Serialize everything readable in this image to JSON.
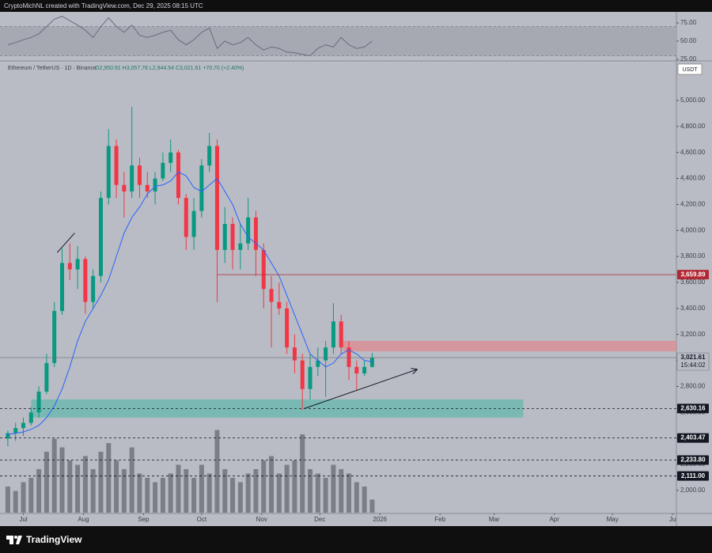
{
  "chart_data": {
    "type": "candlestick",
    "attribution": "CryptoMichNL created with TradingView.com, Dec 29, 2025 08:15 UTC",
    "symbol": "Ethereum / TetherUS · 1D · Binance",
    "ohlc_label": "O2,950.91 H3,057.78 L2,944.54 C3,021.61 +70.70 (+2.40%)",
    "currency": "USDT",
    "brand": "TradingView",
    "up_color": "#089981",
    "down_color": "#f23645",
    "x": [
      -8,
      -4,
      0,
      4,
      8,
      12,
      16,
      20,
      24,
      28,
      32,
      36,
      40,
      44,
      48,
      52,
      56,
      60,
      64,
      68,
      72,
      76,
      80,
      84,
      88,
      92,
      96,
      100,
      104,
      108,
      112,
      116,
      120,
      124,
      128,
      132,
      136,
      140,
      144,
      148,
      152,
      156,
      160,
      164,
      168,
      172,
      176,
      180
    ],
    "open": [
      2400,
      2440,
      2480,
      2520,
      2600,
      2760,
      2980,
      3380,
      3750,
      3700,
      3780,
      3450,
      3650,
      4250,
      4650,
      4350,
      4300,
      4500,
      4350,
      4300,
      4400,
      4520,
      4600,
      4250,
      3950,
      4150,
      4500,
      4650,
      3850,
      4050,
      3850,
      3900,
      4100,
      3850,
      3550,
      3450,
      3400,
      3100,
      3000,
      2780,
      2950,
      3000,
      3100,
      3300,
      3100,
      2950,
      2900,
      2950.91
    ],
    "high": [
      2460,
      2520,
      2560,
      2640,
      2800,
      3050,
      3450,
      3860,
      3900,
      3880,
      3800,
      3700,
      4300,
      4780,
      4700,
      4450,
      4950,
      4560,
      4450,
      4450,
      4600,
      4700,
      4620,
      4280,
      4250,
      4550,
      4750,
      4700,
      4180,
      4100,
      4050,
      4250,
      4150,
      3900,
      3650,
      3600,
      3450,
      3200,
      3050,
      3050,
      3100,
      3150,
      3440,
      3350,
      3150,
      3000,
      3000,
      3057.78
    ],
    "low": [
      2340,
      2380,
      2420,
      2500,
      2560,
      2740,
      2950,
      3350,
      3620,
      3550,
      3360,
      3400,
      3600,
      4200,
      4250,
      4100,
      4250,
      4250,
      4250,
      4200,
      4380,
      4450,
      4200,
      3850,
      3850,
      4100,
      4450,
      3450,
      3750,
      3700,
      3700,
      3850,
      3650,
      3400,
      3100,
      3350,
      3050,
      2900,
      2620,
      2700,
      2880,
      2720,
      3050,
      3050,
      2850,
      2770,
      2880,
      2944.54
    ],
    "close": [
      2440,
      2480,
      2520,
      2600,
      2760,
      2980,
      3380,
      3750,
      3700,
      3780,
      3450,
      3650,
      4250,
      4650,
      4350,
      4300,
      4500,
      4350,
      4300,
      4400,
      4520,
      4600,
      4250,
      3950,
      4150,
      4500,
      4650,
      3850,
      4050,
      3850,
      3900,
      4100,
      3850,
      3550,
      3450,
      3400,
      3100,
      3000,
      2780,
      2950,
      3000,
      3100,
      3300,
      3100,
      2950,
      2900,
      2950,
      3021.61
    ],
    "ma": {
      "color": "#2962ff",
      "values": [
        2430,
        2440,
        2450,
        2470,
        2500,
        2560,
        2650,
        2780,
        2950,
        3150,
        3300,
        3400,
        3500,
        3620,
        3800,
        3980,
        4100,
        4180,
        4280,
        4340,
        4350,
        4380,
        4450,
        4420,
        4330,
        4300,
        4350,
        4400,
        4300,
        4200,
        4050,
        3950,
        3900,
        3850,
        3750,
        3650,
        3500,
        3350,
        3200,
        3050,
        3000,
        2950,
        2980,
        3050,
        3080,
        3050,
        3000,
        2990
      ]
    },
    "volume": {
      "color": "#6b6e76",
      "max": 100,
      "values": [
        30,
        25,
        35,
        40,
        50,
        70,
        85,
        75,
        60,
        55,
        65,
        50,
        70,
        80,
        60,
        50,
        75,
        45,
        40,
        35,
        40,
        45,
        55,
        50,
        40,
        55,
        45,
        95,
        50,
        40,
        35,
        45,
        50,
        60,
        65,
        45,
        55,
        60,
        90,
        50,
        45,
        40,
        55,
        50,
        45,
        35,
        30,
        15
      ]
    },
    "rsi": {
      "color": "#6a6d78",
      "ylim": [
        24,
        89
      ],
      "yticks": [
        {
          "value": 75,
          "label": "75.00"
        },
        {
          "value": 50,
          "label": "50.00"
        },
        {
          "value": 25,
          "label": "25.00"
        }
      ],
      "band": [
        30,
        70
      ],
      "values": [
        45,
        48,
        52,
        55,
        60,
        70,
        80,
        84,
        78,
        72,
        65,
        55,
        70,
        82,
        70,
        62,
        72,
        58,
        55,
        58,
        62,
        65,
        52,
        45,
        52,
        62,
        68,
        40,
        50,
        45,
        48,
        55,
        45,
        38,
        42,
        40,
        35,
        34,
        32,
        30,
        40,
        45,
        42,
        55,
        45,
        40,
        42,
        50
      ]
    },
    "xlim": [
      -10,
      337
    ],
    "xticks": [
      {
        "value": 0,
        "label": "Jul"
      },
      {
        "value": 31,
        "label": "Aug"
      },
      {
        "value": 62,
        "label": "Sep"
      },
      {
        "value": 92,
        "label": "Oct"
      },
      {
        "value": 123,
        "label": "Nov"
      },
      {
        "value": 153,
        "label": "Dec"
      },
      {
        "value": 184,
        "label": "2026"
      },
      {
        "value": 215,
        "label": "Feb"
      },
      {
        "value": 243,
        "label": "Mar"
      },
      {
        "value": 274,
        "label": "Apr"
      },
      {
        "value": 304,
        "label": "May"
      },
      {
        "value": 335,
        "label": "Ju"
      }
    ],
    "ylim": [
      1829,
      5298
    ],
    "yticks": [
      {
        "value": 2000,
        "label": "2,000.00"
      },
      {
        "value": 2200,
        "label": "2,200.00"
      },
      {
        "value": 2400,
        "label": "2,400.00"
      },
      {
        "value": 2600,
        "label": "2,600.00"
      },
      {
        "value": 2800,
        "label": "2,800.00"
      },
      {
        "value": 3000,
        "label": "3,000.00"
      },
      {
        "value": 3200,
        "label": "3,200.00"
      },
      {
        "value": 3400,
        "label": "3,400.00"
      },
      {
        "value": 3600,
        "label": "3,600.00"
      },
      {
        "value": 3800,
        "label": "3,800.00"
      },
      {
        "value": 4000,
        "label": "4,000.00"
      },
      {
        "value": 4200,
        "label": "4,200.00"
      },
      {
        "value": 4400,
        "label": "4,400.00"
      },
      {
        "value": 4600,
        "label": "4,600.00"
      },
      {
        "value": 4800,
        "label": "4,800.00"
      },
      {
        "value": 5000,
        "label": "5,000.00"
      }
    ],
    "levels": [
      {
        "value": 3659.89,
        "label": "3,659.89",
        "color": "#b22833",
        "style": "solid",
        "x_start": 100
      },
      {
        "value": 2630.16,
        "label": "2,630.16",
        "color": "#131722",
        "style": "dashed"
      },
      {
        "value": 2403.47,
        "label": "2,403.47",
        "color": "#131722",
        "style": "dashed"
      },
      {
        "value": 2233.8,
        "label": "2,233.80",
        "color": "#131722",
        "style": "dashed"
      },
      {
        "value": 2111.0,
        "label": "2,111.00",
        "color": "#131722",
        "style": "dashed"
      }
    ],
    "current_price": {
      "value": 3021.61,
      "label": "3,021.61",
      "countdown": "15:44:02"
    },
    "zones": [
      {
        "x": [
          165,
          337
        ],
        "y": [
          3070,
          3150
        ],
        "color": "#d98f96"
      },
      {
        "x": [
          4,
          258
        ],
        "y": [
          2560,
          2700
        ],
        "color": "#6fb8b0"
      }
    ],
    "trendlines": [
      {
        "x": [
          145,
          203
        ],
        "y": [
          2630,
          2930
        ],
        "arrow": true
      },
      {
        "x": [
          17.5,
          26.5
        ],
        "y": [
          3830,
          3980
        ],
        "arrow": false
      }
    ]
  }
}
